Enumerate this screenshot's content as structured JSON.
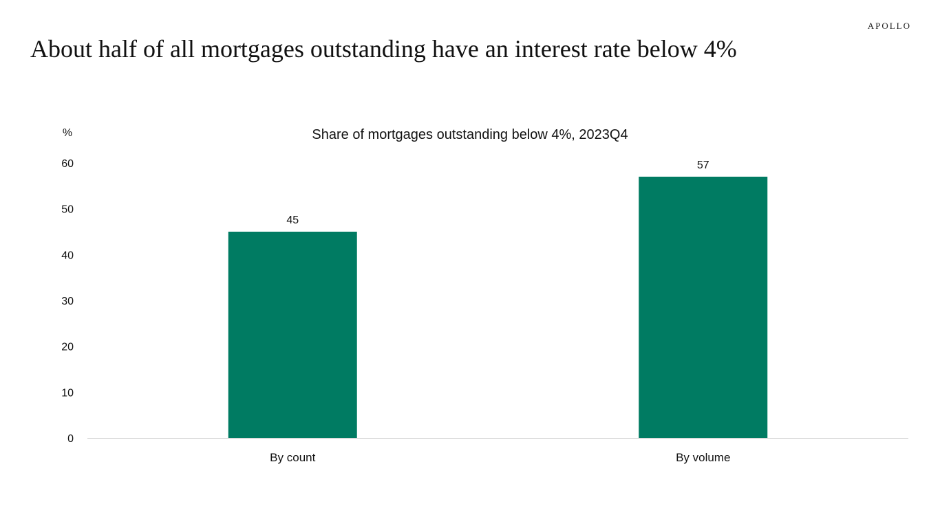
{
  "brand": "APOLLO",
  "page_title": "About half of all mortgages outstanding have an interest rate below 4%",
  "colors": {
    "bar": "#007B62",
    "axis": "#d0d0d0",
    "text": "#111111"
  },
  "chart_data": {
    "type": "bar",
    "title": "Share of mortgages outstanding below 4%, 2023Q4",
    "ylabel": "%",
    "xlabel": "",
    "categories": [
      "By count",
      "By volume"
    ],
    "values": [
      45,
      57
    ],
    "data_labels": [
      "45",
      "57"
    ],
    "ylim": [
      0,
      60
    ],
    "yticks": [
      0,
      10,
      20,
      30,
      40,
      50,
      60
    ],
    "grid": false,
    "legend": "none"
  }
}
